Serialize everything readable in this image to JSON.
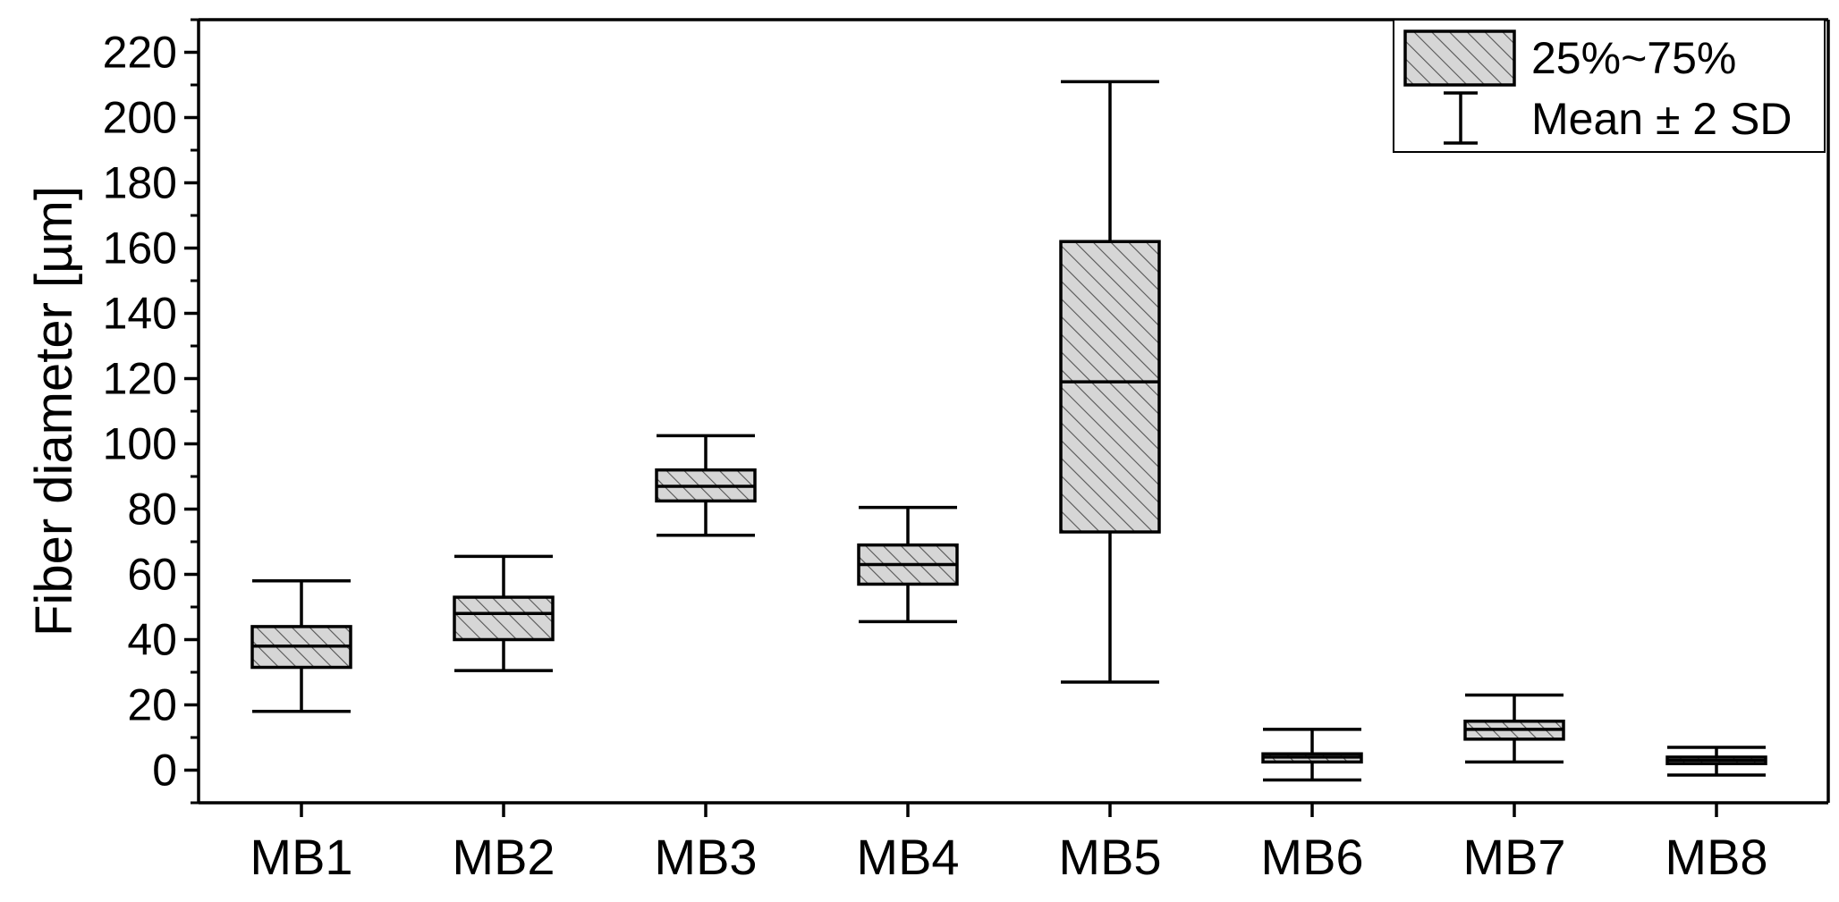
{
  "chart_data": {
    "type": "box",
    "ylabel": "Fiber diameter [µm]",
    "ylim": [
      -10,
      230
    ],
    "y_ticks": [
      0,
      20,
      40,
      60,
      80,
      100,
      120,
      140,
      160,
      180,
      200,
      220
    ],
    "y_tick_labels": [
      "0",
      "20",
      "40",
      "60",
      "80",
      "100",
      "120",
      "140",
      "160",
      "180",
      "200",
      "220"
    ],
    "categories": [
      "MB1",
      "MB2",
      "MB3",
      "MB4",
      "MB5",
      "MB6",
      "MB7",
      "MB8"
    ],
    "series": [
      {
        "boxes": [
          {
            "category": "MB1",
            "q1": 31.5,
            "median": 38,
            "q3": 44,
            "whisker_low": 18,
            "whisker_high": 58
          },
          {
            "category": "MB2",
            "q1": 40,
            "median": 48,
            "q3": 53,
            "whisker_low": 30.5,
            "whisker_high": 65.5
          },
          {
            "category": "MB3",
            "q1": 82.5,
            "median": 87,
            "q3": 92,
            "whisker_low": 72,
            "whisker_high": 102.5
          },
          {
            "category": "MB4",
            "q1": 57,
            "median": 63,
            "q3": 69,
            "whisker_low": 45.5,
            "whisker_high": 80.5
          },
          {
            "category": "MB5",
            "q1": 73,
            "median": 119,
            "q3": 162,
            "whisker_low": 27,
            "whisker_high": 211
          },
          {
            "category": "MB6",
            "q1": 2.5,
            "median": 4,
            "q3": 5,
            "whisker_low": -3,
            "whisker_high": 12.5
          },
          {
            "category": "MB7",
            "q1": 9.5,
            "median": 12.5,
            "q3": 15,
            "whisker_low": 2.5,
            "whisker_high": 23
          },
          {
            "category": "MB8",
            "q1": 2,
            "median": 3,
            "q3": 4,
            "whisker_low": -1.5,
            "whisker_high": 7
          }
        ]
      }
    ],
    "legend": {
      "placement": "top-right",
      "entries": [
        {
          "label": "25%~75%",
          "symbol": "hatched-box"
        },
        {
          "label": "Mean ± 2 SD",
          "symbol": "whisker"
        }
      ]
    },
    "grid": false,
    "colors": {
      "box_fill": "#d6d6d6",
      "hatch": "#555555",
      "line": "#000000"
    }
  }
}
